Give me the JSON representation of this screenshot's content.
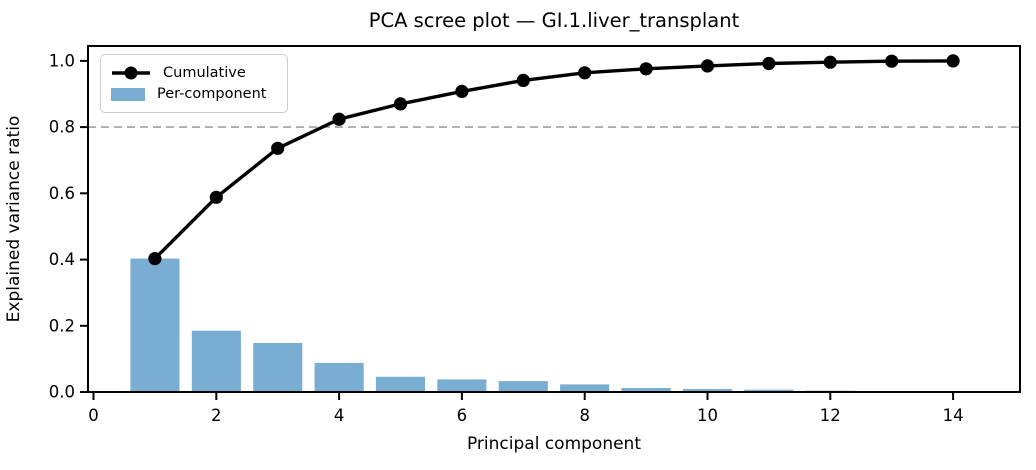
{
  "figure": {
    "title": "PCA scree plot — GI.1.liver_transplant",
    "xlabel": "Principal component",
    "ylabel": "Explained variance ratio",
    "background_color": "#ffffff",
    "spine_color": "#000000"
  },
  "legend": {
    "position": "upper-left",
    "items": [
      {
        "label": "Cumulative",
        "type": "line-marker",
        "color": "#000000"
      },
      {
        "label": "Per-component",
        "type": "patch",
        "color": "#79ADD2"
      }
    ]
  },
  "chart_data": {
    "type": "bar",
    "title": "PCA scree plot — GI.1.liver_transplant",
    "xlabel": "Principal component",
    "ylabel": "Explained variance ratio",
    "x": [
      1,
      2,
      3,
      4,
      5,
      6,
      7,
      8,
      9,
      10,
      11,
      12,
      13,
      14
    ],
    "series": [
      {
        "name": "Per-component",
        "type": "bar",
        "color": "#79ADD2",
        "values": [
          0.403,
          0.185,
          0.148,
          0.088,
          0.046,
          0.038,
          0.033,
          0.023,
          0.012,
          0.009,
          0.007,
          0.004,
          0.003,
          0.001
        ]
      },
      {
        "name": "Cumulative",
        "type": "line",
        "color": "#000000",
        "marker": "circle",
        "values": [
          0.403,
          0.588,
          0.736,
          0.824,
          0.87,
          0.908,
          0.941,
          0.964,
          0.976,
          0.985,
          0.992,
          0.996,
          0.999,
          1.0
        ]
      }
    ],
    "threshold_line": {
      "y": 0.8,
      "style": "dashed",
      "color": "#a0a0a0"
    },
    "xlim": [
      -0.09,
      15.09
    ],
    "ylim": [
      0.0,
      1.045
    ],
    "bar_width": 0.8,
    "grid": false,
    "legend_position": "upper-left",
    "xticks": {
      "values": [
        0,
        2,
        4,
        6,
        8,
        10,
        12,
        14
      ],
      "labels": [
        "0",
        "2",
        "4",
        "6",
        "8",
        "10",
        "12",
        "14"
      ]
    },
    "yticks": {
      "values": [
        0.0,
        0.2,
        0.4,
        0.6,
        0.8,
        1.0
      ],
      "labels": [
        "0.0",
        "0.2",
        "0.4",
        "0.6",
        "0.8",
        "1.0"
      ]
    }
  }
}
